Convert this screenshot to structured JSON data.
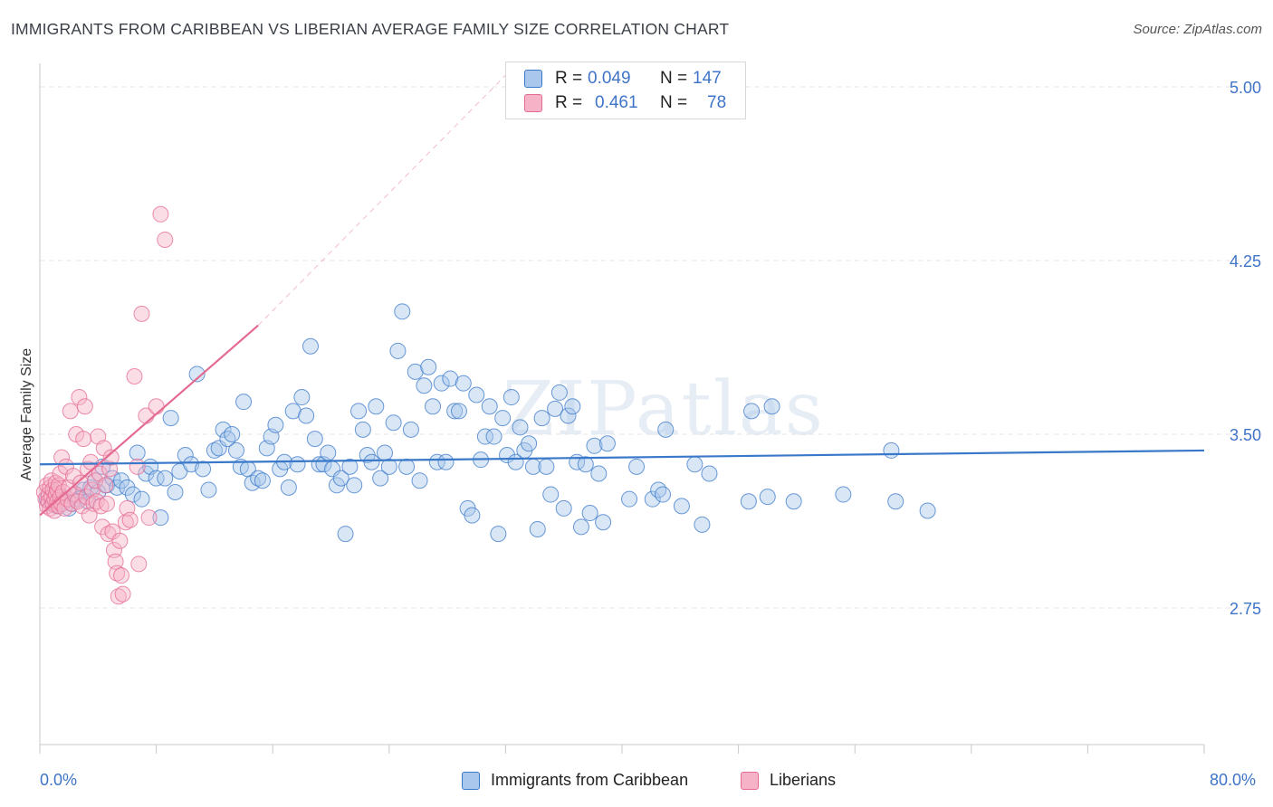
{
  "title": "IMMIGRANTS FROM CARIBBEAN VS LIBERIAN AVERAGE FAMILY SIZE CORRELATION CHART",
  "source": "Source: ZipAtlas.com",
  "watermark": "ZIPatlas",
  "colors": {
    "blue": "#3a78c9",
    "blue_fill": "#a9c7ec",
    "pink": "#e46a92",
    "pink_fill": "#f6b3c8",
    "tick": "#3f74c8"
  },
  "legend": {
    "rows": [
      {
        "r_label": "R =",
        "r_value": "0.049",
        "n_label": "N =",
        "n_value": "147",
        "color": "#a9c7ec"
      },
      {
        "r_label": "R =",
        "r_value": "0.461",
        "n_label": "N =",
        "n_value": "78",
        "color": "#f6b3c8"
      }
    ]
  },
  "bottom_legend": [
    {
      "label": "Immigrants from Caribbean",
      "color": "#a9c7ec"
    },
    {
      "label": "Liberians",
      "color": "#f6b3c8"
    }
  ],
  "x_labels": {
    "min": "0.0%",
    "max": "80.0%"
  },
  "chart_data": {
    "type": "scatter",
    "title": "IMMIGRANTS FROM CARIBBEAN VS LIBERIAN AVERAGE FAMILY SIZE CORRELATION CHART",
    "xlabel": "",
    "ylabel": "Average Family Size",
    "xlim": [
      0,
      80
    ],
    "ylim": [
      2.0,
      5.05
    ],
    "yticks": [
      2.75,
      3.5,
      4.25,
      5.0
    ],
    "ytick_labels": [
      "2.75",
      "3.50",
      "4.25",
      "5.00"
    ],
    "grid": true,
    "legend_position": "top-center",
    "series": [
      {
        "name": "Immigrants from Caribbean",
        "r": 0.049,
        "n": 147,
        "trend": [
          [
            0,
            3.37
          ],
          [
            80,
            3.43
          ]
        ],
        "points": [
          [
            0.5,
            3.22
          ],
          [
            0.8,
            3.2
          ],
          [
            1.0,
            3.25
          ],
          [
            1.2,
            3.19
          ],
          [
            1.5,
            3.23
          ],
          [
            1.7,
            3.21
          ],
          [
            2.0,
            3.18
          ],
          [
            2.2,
            3.2
          ],
          [
            2.5,
            3.24
          ],
          [
            2.7,
            3.22
          ],
          [
            3.0,
            3.26
          ],
          [
            3.3,
            3.21
          ],
          [
            3.5,
            3.27
          ],
          [
            3.8,
            3.3
          ],
          [
            4.0,
            3.25
          ],
          [
            4.3,
            3.36
          ],
          [
            4.6,
            3.28
          ],
          [
            5.0,
            3.31
          ],
          [
            5.3,
            3.27
          ],
          [
            5.6,
            3.3
          ],
          [
            6.0,
            3.27
          ],
          [
            6.4,
            3.24
          ],
          [
            6.7,
            3.42
          ],
          [
            7.0,
            3.22
          ],
          [
            7.3,
            3.33
          ],
          [
            7.6,
            3.36
          ],
          [
            8.0,
            3.31
          ],
          [
            8.3,
            3.14
          ],
          [
            8.6,
            3.31
          ],
          [
            9.0,
            3.57
          ],
          [
            9.3,
            3.25
          ],
          [
            9.6,
            3.34
          ],
          [
            10.0,
            3.41
          ],
          [
            10.4,
            3.37
          ],
          [
            10.8,
            3.76
          ],
          [
            11.2,
            3.35
          ],
          [
            11.6,
            3.26
          ],
          [
            12.0,
            3.43
          ],
          [
            12.3,
            3.44
          ],
          [
            12.6,
            3.52
          ],
          [
            12.9,
            3.48
          ],
          [
            13.2,
            3.5
          ],
          [
            13.5,
            3.43
          ],
          [
            13.8,
            3.36
          ],
          [
            14.0,
            3.64
          ],
          [
            14.3,
            3.35
          ],
          [
            14.6,
            3.29
          ],
          [
            15.0,
            3.31
          ],
          [
            15.3,
            3.3
          ],
          [
            15.6,
            3.44
          ],
          [
            15.9,
            3.49
          ],
          [
            16.2,
            3.54
          ],
          [
            16.5,
            3.35
          ],
          [
            16.8,
            3.38
          ],
          [
            17.1,
            3.27
          ],
          [
            17.4,
            3.6
          ],
          [
            17.7,
            3.37
          ],
          [
            18.0,
            3.66
          ],
          [
            18.3,
            3.58
          ],
          [
            18.6,
            3.88
          ],
          [
            18.9,
            3.48
          ],
          [
            19.2,
            3.37
          ],
          [
            19.5,
            3.37
          ],
          [
            19.8,
            3.42
          ],
          [
            20.1,
            3.35
          ],
          [
            20.4,
            3.28
          ],
          [
            20.7,
            3.31
          ],
          [
            21.0,
            3.07
          ],
          [
            21.3,
            3.36
          ],
          [
            21.6,
            3.28
          ],
          [
            21.9,
            3.6
          ],
          [
            22.2,
            3.52
          ],
          [
            22.5,
            3.41
          ],
          [
            22.8,
            3.38
          ],
          [
            23.1,
            3.62
          ],
          [
            23.4,
            3.31
          ],
          [
            23.7,
            3.42
          ],
          [
            24.0,
            3.36
          ],
          [
            24.3,
            3.55
          ],
          [
            24.6,
            3.86
          ],
          [
            24.9,
            4.03
          ],
          [
            25.2,
            3.36
          ],
          [
            25.5,
            3.52
          ],
          [
            25.8,
            3.77
          ],
          [
            26.1,
            3.3
          ],
          [
            26.4,
            3.71
          ],
          [
            26.7,
            3.79
          ],
          [
            27.0,
            3.62
          ],
          [
            27.3,
            3.38
          ],
          [
            27.6,
            3.72
          ],
          [
            27.9,
            3.38
          ],
          [
            28.2,
            3.74
          ],
          [
            28.5,
            3.6
          ],
          [
            28.8,
            3.6
          ],
          [
            29.1,
            3.72
          ],
          [
            29.4,
            3.18
          ],
          [
            29.7,
            3.15
          ],
          [
            30.0,
            3.67
          ],
          [
            30.3,
            3.39
          ],
          [
            30.6,
            3.49
          ],
          [
            30.9,
            3.62
          ],
          [
            31.2,
            3.49
          ],
          [
            31.5,
            3.07
          ],
          [
            31.8,
            3.57
          ],
          [
            32.1,
            3.41
          ],
          [
            32.4,
            3.66
          ],
          [
            32.7,
            3.38
          ],
          [
            33.0,
            3.53
          ],
          [
            33.3,
            3.43
          ],
          [
            33.6,
            3.46
          ],
          [
            33.9,
            3.36
          ],
          [
            34.2,
            3.09
          ],
          [
            34.5,
            3.57
          ],
          [
            34.8,
            3.36
          ],
          [
            35.1,
            3.24
          ],
          [
            35.4,
            3.61
          ],
          [
            35.7,
            3.68
          ],
          [
            36.0,
            3.18
          ],
          [
            36.3,
            3.58
          ],
          [
            36.6,
            3.62
          ],
          [
            36.9,
            3.38
          ],
          [
            37.2,
            3.1
          ],
          [
            37.5,
            3.37
          ],
          [
            37.8,
            3.16
          ],
          [
            38.1,
            3.45
          ],
          [
            38.4,
            3.33
          ],
          [
            38.7,
            3.12
          ],
          [
            39.0,
            3.46
          ],
          [
            40.5,
            3.22
          ],
          [
            41.0,
            3.36
          ],
          [
            42.1,
            3.22
          ],
          [
            42.5,
            3.26
          ],
          [
            42.8,
            3.24
          ],
          [
            43.0,
            3.52
          ],
          [
            44.1,
            3.19
          ],
          [
            45.0,
            3.37
          ],
          [
            45.5,
            3.11
          ],
          [
            46.0,
            3.33
          ],
          [
            48.7,
            3.21
          ],
          [
            48.9,
            3.6
          ],
          [
            50.0,
            3.23
          ],
          [
            50.3,
            3.62
          ],
          [
            51.8,
            3.21
          ],
          [
            55.2,
            3.24
          ],
          [
            58.5,
            3.43
          ],
          [
            58.8,
            3.21
          ],
          [
            61.0,
            3.17
          ]
        ]
      },
      {
        "name": "Liberians",
        "r": 0.461,
        "n": 78,
        "trend": [
          [
            0,
            3.15
          ],
          [
            15,
            3.97
          ]
        ],
        "trend_extension": [
          [
            15,
            3.97
          ],
          [
            32,
            5.05
          ]
        ],
        "points": [
          [
            0.3,
            3.25
          ],
          [
            0.4,
            3.22
          ],
          [
            0.5,
            3.28
          ],
          [
            0.5,
            3.19
          ],
          [
            0.6,
            3.24
          ],
          [
            0.6,
            3.21
          ],
          [
            0.7,
            3.27
          ],
          [
            0.7,
            3.18
          ],
          [
            0.8,
            3.23
          ],
          [
            0.8,
            3.3
          ],
          [
            0.9,
            3.2
          ],
          [
            0.9,
            3.26
          ],
          [
            1.0,
            3.22
          ],
          [
            1.0,
            3.17
          ],
          [
            1.1,
            3.29
          ],
          [
            1.1,
            3.24
          ],
          [
            1.2,
            3.21
          ],
          [
            1.2,
            3.26
          ],
          [
            1.3,
            3.19
          ],
          [
            1.3,
            3.28
          ],
          [
            1.4,
            3.23
          ],
          [
            1.4,
            3.33
          ],
          [
            1.5,
            3.2
          ],
          [
            1.5,
            3.4
          ],
          [
            1.6,
            3.25
          ],
          [
            1.7,
            3.18
          ],
          [
            1.8,
            3.36
          ],
          [
            1.9,
            3.22
          ],
          [
            2.0,
            3.27
          ],
          [
            2.1,
            3.6
          ],
          [
            2.2,
            3.2
          ],
          [
            2.3,
            3.32
          ],
          [
            2.4,
            3.24
          ],
          [
            2.5,
            3.5
          ],
          [
            2.6,
            3.21
          ],
          [
            2.7,
            3.66
          ],
          [
            2.8,
            3.29
          ],
          [
            2.9,
            3.19
          ],
          [
            3.0,
            3.48
          ],
          [
            3.1,
            3.62
          ],
          [
            3.2,
            3.23
          ],
          [
            3.3,
            3.35
          ],
          [
            3.4,
            3.15
          ],
          [
            3.5,
            3.38
          ],
          [
            3.6,
            3.26
          ],
          [
            3.7,
            3.2
          ],
          [
            3.8,
            3.3
          ],
          [
            3.9,
            3.21
          ],
          [
            4.0,
            3.49
          ],
          [
            4.1,
            3.33
          ],
          [
            4.2,
            3.19
          ],
          [
            4.3,
            3.1
          ],
          [
            4.4,
            3.44
          ],
          [
            4.5,
            3.28
          ],
          [
            4.6,
            3.2
          ],
          [
            4.7,
            3.07
          ],
          [
            4.8,
            3.35
          ],
          [
            4.9,
            3.4
          ],
          [
            5.0,
            3.08
          ],
          [
            5.1,
            3.0
          ],
          [
            5.2,
            2.95
          ],
          [
            5.3,
            2.9
          ],
          [
            5.4,
            2.8
          ],
          [
            5.5,
            3.04
          ],
          [
            5.6,
            2.89
          ],
          [
            5.7,
            2.81
          ],
          [
            5.9,
            3.12
          ],
          [
            6.0,
            3.18
          ],
          [
            6.2,
            3.13
          ],
          [
            6.5,
            3.75
          ],
          [
            6.7,
            3.36
          ],
          [
            6.8,
            2.94
          ],
          [
            7.0,
            4.02
          ],
          [
            7.3,
            3.58
          ],
          [
            7.5,
            3.14
          ],
          [
            8.0,
            3.62
          ],
          [
            8.3,
            4.45
          ],
          [
            8.6,
            4.34
          ]
        ]
      }
    ]
  }
}
